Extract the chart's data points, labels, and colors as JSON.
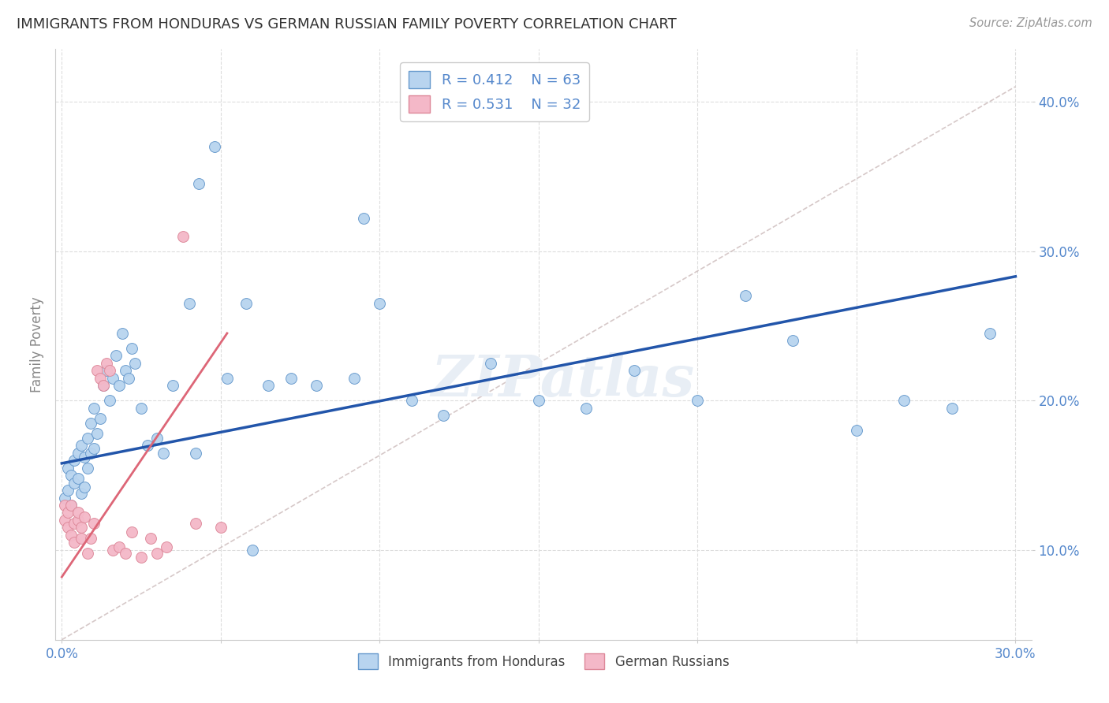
{
  "title": "IMMIGRANTS FROM HONDURAS VS GERMAN RUSSIAN FAMILY POVERTY CORRELATION CHART",
  "source": "Source: ZipAtlas.com",
  "ylabel": "Family Poverty",
  "xlim": [
    -0.002,
    0.305
  ],
  "ylim": [
    0.04,
    0.435
  ],
  "blue_R": 0.412,
  "blue_N": 63,
  "pink_R": 0.531,
  "pink_N": 32,
  "blue_scatter_color": "#B8D4EF",
  "blue_edge_color": "#6699CC",
  "pink_scatter_color": "#F4B8C8",
  "pink_edge_color": "#DD8899",
  "blue_line_color": "#2255AA",
  "pink_line_color": "#DD6677",
  "diag_line_color": "#CCBBBB",
  "grid_color": "#DDDDDD",
  "bg_color": "#FFFFFF",
  "title_color": "#333333",
  "axis_tick_color": "#5588CC",
  "blue_x": [
    0.001,
    0.002,
    0.002,
    0.003,
    0.003,
    0.004,
    0.004,
    0.005,
    0.005,
    0.006,
    0.006,
    0.007,
    0.007,
    0.008,
    0.008,
    0.009,
    0.009,
    0.01,
    0.01,
    0.011,
    0.012,
    0.013,
    0.014,
    0.015,
    0.016,
    0.017,
    0.018,
    0.019,
    0.02,
    0.021,
    0.022,
    0.023,
    0.025,
    0.027,
    0.03,
    0.032,
    0.035,
    0.04,
    0.043,
    0.048,
    0.052,
    0.058,
    0.065,
    0.072,
    0.08,
    0.092,
    0.1,
    0.11,
    0.12,
    0.135,
    0.15,
    0.165,
    0.18,
    0.2,
    0.215,
    0.23,
    0.25,
    0.265,
    0.28,
    0.292,
    0.095,
    0.042,
    0.06
  ],
  "blue_y": [
    0.135,
    0.14,
    0.155,
    0.13,
    0.15,
    0.145,
    0.16,
    0.148,
    0.165,
    0.138,
    0.17,
    0.142,
    0.162,
    0.155,
    0.175,
    0.165,
    0.185,
    0.168,
    0.195,
    0.178,
    0.188,
    0.21,
    0.22,
    0.2,
    0.215,
    0.23,
    0.21,
    0.245,
    0.22,
    0.215,
    0.235,
    0.225,
    0.195,
    0.17,
    0.175,
    0.165,
    0.21,
    0.265,
    0.345,
    0.37,
    0.215,
    0.265,
    0.21,
    0.215,
    0.21,
    0.215,
    0.265,
    0.2,
    0.19,
    0.225,
    0.2,
    0.195,
    0.22,
    0.2,
    0.27,
    0.24,
    0.18,
    0.2,
    0.195,
    0.245,
    0.322,
    0.165,
    0.1
  ],
  "pink_x": [
    0.001,
    0.001,
    0.002,
    0.002,
    0.003,
    0.003,
    0.004,
    0.004,
    0.005,
    0.005,
    0.006,
    0.006,
    0.007,
    0.008,
    0.009,
    0.01,
    0.011,
    0.012,
    0.013,
    0.014,
    0.015,
    0.016,
    0.018,
    0.02,
    0.022,
    0.025,
    0.028,
    0.03,
    0.033,
    0.038,
    0.042,
    0.05
  ],
  "pink_y": [
    0.12,
    0.13,
    0.115,
    0.125,
    0.11,
    0.13,
    0.105,
    0.118,
    0.12,
    0.125,
    0.108,
    0.115,
    0.122,
    0.098,
    0.108,
    0.118,
    0.22,
    0.215,
    0.21,
    0.225,
    0.22,
    0.1,
    0.102,
    0.098,
    0.112,
    0.095,
    0.108,
    0.098,
    0.102,
    0.31,
    0.118,
    0.115
  ],
  "blue_line_x": [
    0.0,
    0.3
  ],
  "blue_line_y": [
    0.158,
    0.283
  ],
  "pink_line_x": [
    0.0,
    0.052
  ],
  "pink_line_y": [
    0.082,
    0.245
  ],
  "diag_line_x": [
    0.0,
    0.3
  ],
  "diag_line_y": [
    0.04,
    0.41
  ]
}
